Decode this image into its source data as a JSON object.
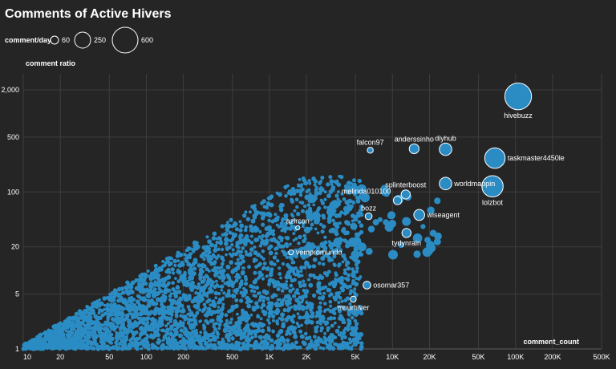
{
  "colors": {
    "background": "#252525",
    "point": "#2b8cc4",
    "outline": "#ffffff"
  },
  "chart_data": {
    "type": "scatter",
    "title": "Comments of Active Hivers",
    "xlabel": "comment_count",
    "ylabel": "comment ratio",
    "x_scale": "log",
    "y_scale": "log",
    "xlim": [
      10,
      500000
    ],
    "ylim": [
      1,
      3000
    ],
    "x_ticks": [
      {
        "v": 10,
        "label": "10"
      },
      {
        "v": 20,
        "label": "20"
      },
      {
        "v": 50,
        "label": "50"
      },
      {
        "v": 100,
        "label": "100"
      },
      {
        "v": 200,
        "label": "200"
      },
      {
        "v": 500,
        "label": "500"
      },
      {
        "v": 1000,
        "label": "1K"
      },
      {
        "v": 2000,
        "label": "2K"
      },
      {
        "v": 5000,
        "label": "5K"
      },
      {
        "v": 10000,
        "label": "10K"
      },
      {
        "v": 20000,
        "label": "20K"
      },
      {
        "v": 50000,
        "label": "50K"
      },
      {
        "v": 100000,
        "label": "100K"
      },
      {
        "v": 200000,
        "label": "200K"
      },
      {
        "v": 500000,
        "label": "500K"
      }
    ],
    "y_ticks": [
      {
        "v": 1,
        "label": "1"
      },
      {
        "v": 5,
        "label": "5"
      },
      {
        "v": 20,
        "label": "20"
      },
      {
        "v": 100,
        "label": "100"
      },
      {
        "v": 500,
        "label": "500"
      },
      {
        "v": 2000,
        "label": "2,000"
      }
    ],
    "grid": true,
    "size_legend": {
      "title": "comment/day",
      "entries": [
        {
          "label": "60",
          "value": 60
        },
        {
          "label": "250",
          "value": 250
        },
        {
          "label": "600",
          "value": 600
        }
      ]
    },
    "labeled_points": [
      {
        "name": "hivebuzz",
        "x": 105000,
        "y": 1650,
        "size": 600
      },
      {
        "name": "taskmaster4450le",
        "x": 68000,
        "y": 270,
        "size": 350
      },
      {
        "name": "lolzbot",
        "x": 65000,
        "y": 118,
        "size": 380
      },
      {
        "name": "worldmappin",
        "x": 27000,
        "y": 128,
        "size": 130
      },
      {
        "name": "diyhub",
        "x": 27000,
        "y": 350,
        "size": 130
      },
      {
        "name": "anderssinho",
        "x": 15000,
        "y": 355,
        "size": 80
      },
      {
        "name": "falcon97",
        "x": 6600,
        "y": 340,
        "size": 30
      },
      {
        "name": "splinterboost",
        "x": 12800,
        "y": 93,
        "size": 70
      },
      {
        "name": "melinda010100",
        "x": 11000,
        "y": 78,
        "size": 60
      },
      {
        "name": "bozz",
        "x": 6400,
        "y": 49,
        "size": 40
      },
      {
        "name": "wiseagent",
        "x": 16500,
        "y": 51,
        "size": 100
      },
      {
        "name": "tydynrain",
        "x": 13000,
        "y": 30,
        "size": 70
      },
      {
        "name": "azircon",
        "x": 1700,
        "y": 35,
        "size": 15
      },
      {
        "name": "vempromundo",
        "x": 1500,
        "y": 17,
        "size": 20
      },
      {
        "name": "osomar357",
        "x": 6200,
        "y": 6.5,
        "size": 50
      },
      {
        "name": "mnurhiver",
        "x": 4800,
        "y": 4.3,
        "size": 30
      }
    ]
  }
}
